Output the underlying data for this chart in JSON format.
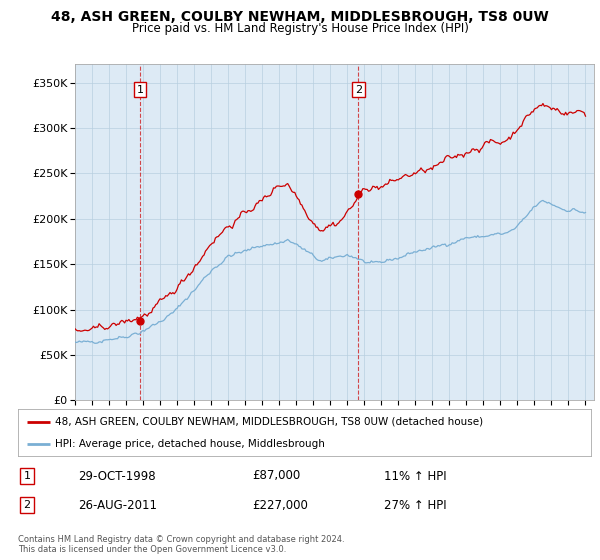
{
  "title_line1": "48, ASH GREEN, COULBY NEWHAM, MIDDLESBROUGH, TS8 0UW",
  "title_line2": "Price paid vs. HM Land Registry's House Price Index (HPI)",
  "ylim": [
    0,
    370000
  ],
  "xlim_start": 1995.0,
  "xlim_end": 2025.5,
  "yticks": [
    0,
    50000,
    100000,
    150000,
    200000,
    250000,
    300000,
    350000
  ],
  "ytick_labels": [
    "£0",
    "£50K",
    "£100K",
    "£150K",
    "£200K",
    "£250K",
    "£300K",
    "£350K"
  ],
  "xtick_years": [
    1995,
    1996,
    1997,
    1998,
    1999,
    2000,
    2001,
    2002,
    2003,
    2004,
    2005,
    2006,
    2007,
    2008,
    2009,
    2010,
    2011,
    2012,
    2013,
    2014,
    2015,
    2016,
    2017,
    2018,
    2019,
    2020,
    2021,
    2022,
    2023,
    2024,
    2025
  ],
  "sale1_x": 1998.83,
  "sale1_y": 87000,
  "sale1_label": "1",
  "sale1_date": "29-OCT-1998",
  "sale1_price": "£87,000",
  "sale1_hpi": "11% ↑ HPI",
  "sale2_x": 2011.65,
  "sale2_y": 227000,
  "sale2_label": "2",
  "sale2_date": "26-AUG-2011",
  "sale2_price": "£227,000",
  "sale2_hpi": "27% ↑ HPI",
  "red_color": "#cc0000",
  "blue_color": "#7aafd4",
  "bg_color": "#ddeaf5",
  "plot_bg": "#ffffff",
  "grid_color": "#b8cfe0",
  "legend1": "48, ASH GREEN, COULBY NEWHAM, MIDDLESBROUGH, TS8 0UW (detached house)",
  "legend2": "HPI: Average price, detached house, Middlesbrough",
  "footnote": "Contains HM Land Registry data © Crown copyright and database right 2024.\nThis data is licensed under the Open Government Licence v3.0."
}
